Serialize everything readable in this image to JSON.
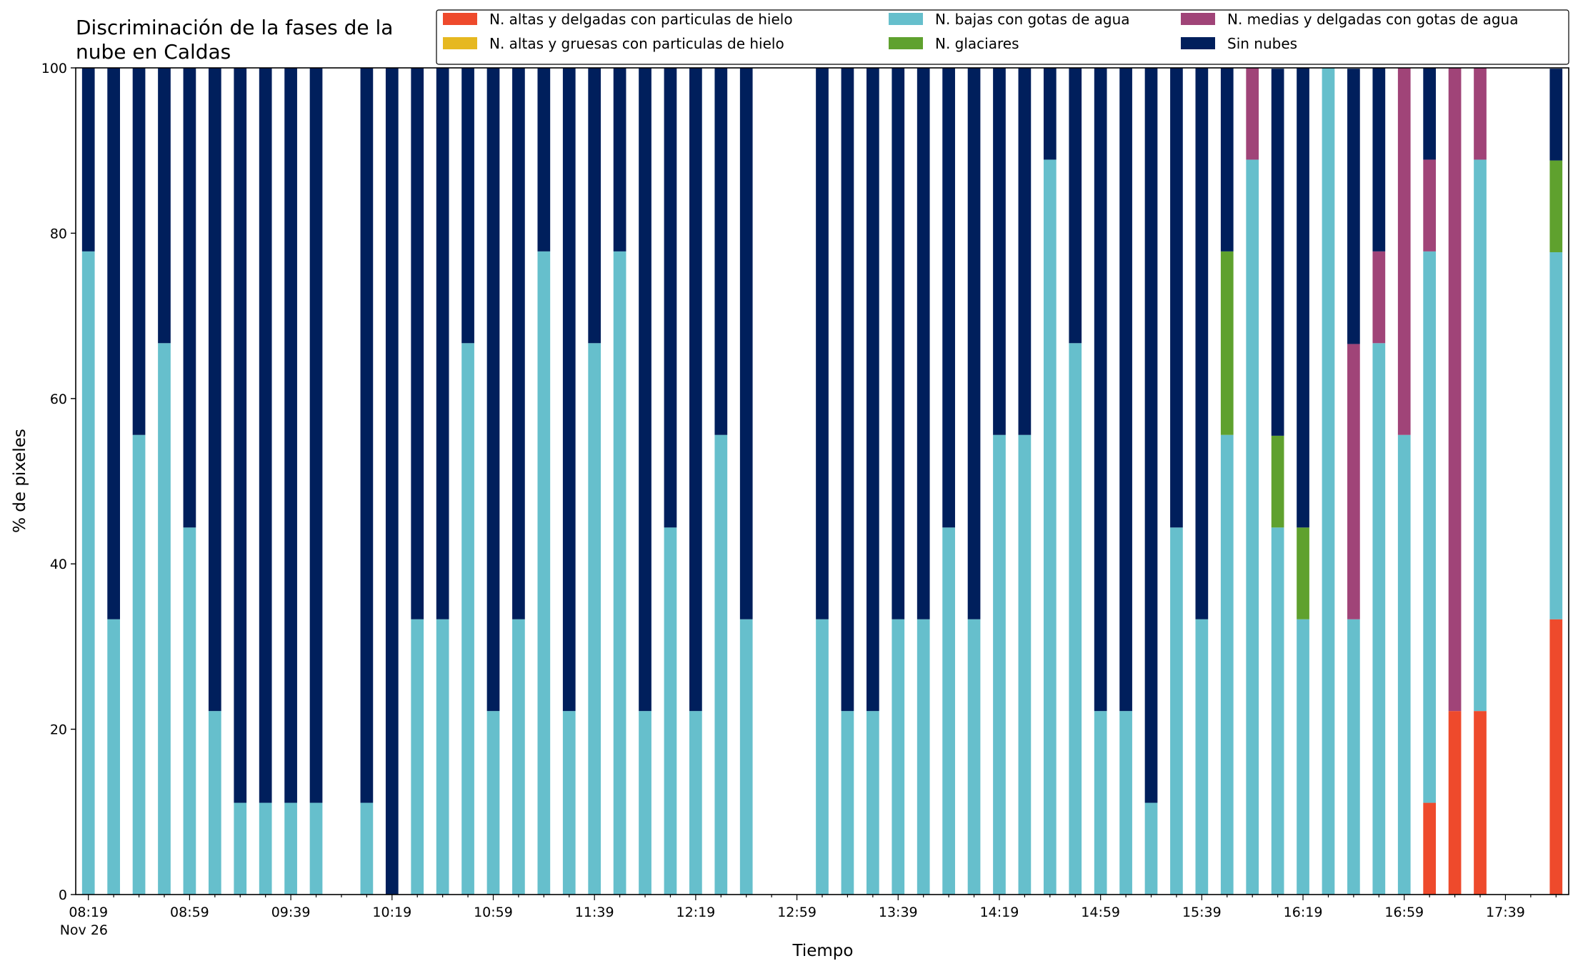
{
  "chart_data": {
    "type": "bar",
    "stacked": true,
    "title": "Discriminación de la fases de la\nnube en Caldas",
    "xlabel": "Tiempo",
    "ylabel": "% de pixeles",
    "ylim": [
      0,
      100
    ],
    "yticks": [
      0,
      20,
      40,
      60,
      80,
      100
    ],
    "x_start_time": "08:19",
    "x_step_minutes": 10,
    "x_slots": 59,
    "xtick_labels": [
      "08:19",
      "08:59",
      "09:39",
      "10:19",
      "10:59",
      "11:39",
      "12:19",
      "12:59",
      "13:39",
      "14:19",
      "14:59",
      "15:39",
      "16:19",
      "16:59",
      "17:39"
    ],
    "x_date_label": "Nov 26",
    "grid": false,
    "legend_position": "top-right",
    "series": [
      {
        "name": "N. altas y delgadas con particulas de hielo",
        "color": "#ee4a2c",
        "values": [
          0,
          0,
          0,
          0,
          0,
          0,
          0,
          0,
          0,
          0,
          0,
          0,
          0,
          0,
          0,
          0,
          0,
          0,
          0,
          0,
          0,
          0,
          0,
          0,
          0,
          0,
          0,
          0,
          0,
          0,
          0,
          0,
          0,
          0,
          0,
          0,
          0,
          0,
          0,
          0,
          0,
          0,
          0,
          0,
          0,
          0,
          0,
          0,
          0,
          0,
          0,
          0,
          0,
          11.1,
          22.2,
          22.2,
          0,
          0,
          33.3
        ]
      },
      {
        "name": "N. altas y gruesas con particulas de hielo",
        "color": "#e6b820",
        "values": [
          0,
          0,
          0,
          0,
          0,
          0,
          0,
          0,
          0,
          0,
          0,
          0,
          0,
          0,
          0,
          0,
          0,
          0,
          0,
          0,
          0,
          0,
          0,
          0,
          0,
          0,
          0,
          0,
          0,
          0,
          0,
          0,
          0,
          0,
          0,
          0,
          0,
          0,
          0,
          0,
          0,
          0,
          0,
          0,
          0,
          0,
          0,
          0,
          0,
          0,
          0,
          0,
          0,
          0,
          0,
          0,
          0,
          0,
          0
        ]
      },
      {
        "name": "N. bajas con gotas de agua",
        "color": "#66bfcc",
        "values": [
          77.8,
          33.3,
          55.6,
          66.7,
          44.4,
          22.2,
          11.1,
          11.1,
          11.1,
          11.1,
          0,
          11.1,
          0,
          33.3,
          33.3,
          66.7,
          22.2,
          33.3,
          77.8,
          22.2,
          66.7,
          77.8,
          22.2,
          44.4,
          22.2,
          55.6,
          33.3,
          0,
          0,
          33.3,
          22.2,
          22.2,
          33.3,
          33.3,
          44.4,
          33.3,
          55.6,
          55.6,
          88.9,
          66.7,
          22.2,
          22.2,
          11.1,
          44.4,
          33.3,
          55.6,
          88.9,
          44.4,
          33.3,
          100,
          33.3,
          66.7,
          55.6,
          66.7,
          0,
          66.7,
          0,
          0,
          44.4
        ]
      },
      {
        "name": "N. glaciares",
        "color": "#5fa12e",
        "values": [
          0,
          0,
          0,
          0,
          0,
          0,
          0,
          0,
          0,
          0,
          0,
          0,
          0,
          0,
          0,
          0,
          0,
          0,
          0,
          0,
          0,
          0,
          0,
          0,
          0,
          0,
          0,
          0,
          0,
          0,
          0,
          0,
          0,
          0,
          0,
          0,
          0,
          0,
          0,
          0,
          0,
          0,
          0,
          0,
          0,
          22.2,
          0,
          11.1,
          11.1,
          0,
          0,
          0,
          0,
          0,
          0,
          0,
          0,
          0,
          11.1
        ]
      },
      {
        "name": "N. medias y delgadas con gotas de agua",
        "color": "#a04478",
        "values": [
          0,
          0,
          0,
          0,
          0,
          0,
          0,
          0,
          0,
          0,
          0,
          0,
          0,
          0,
          0,
          0,
          0,
          0,
          0,
          0,
          0,
          0,
          0,
          0,
          0,
          0,
          0,
          0,
          0,
          0,
          0,
          0,
          0,
          0,
          0,
          0,
          0,
          0,
          0,
          0,
          0,
          0,
          0,
          0,
          0,
          0,
          11.1,
          0,
          0,
          0,
          33.3,
          11.1,
          44.4,
          11.1,
          77.8,
          11.1,
          0,
          0,
          0
        ]
      },
      {
        "name": "Sin nubes",
        "color": "#001f5c",
        "values": [
          22.2,
          66.7,
          44.4,
          33.3,
          55.6,
          77.8,
          88.9,
          88.9,
          88.9,
          88.9,
          0,
          88.9,
          100,
          66.7,
          66.7,
          33.3,
          77.8,
          66.7,
          22.2,
          77.8,
          33.3,
          22.2,
          77.8,
          55.6,
          77.8,
          44.4,
          66.7,
          0,
          0,
          66.7,
          77.8,
          77.8,
          66.7,
          66.7,
          55.6,
          66.7,
          44.4,
          44.4,
          11.1,
          33.3,
          77.8,
          77.8,
          88.9,
          55.6,
          66.7,
          22.2,
          0,
          44.4,
          55.6,
          0,
          33.3,
          22.2,
          0,
          11.1,
          0,
          0,
          0,
          0,
          11.1
        ]
      }
    ]
  }
}
